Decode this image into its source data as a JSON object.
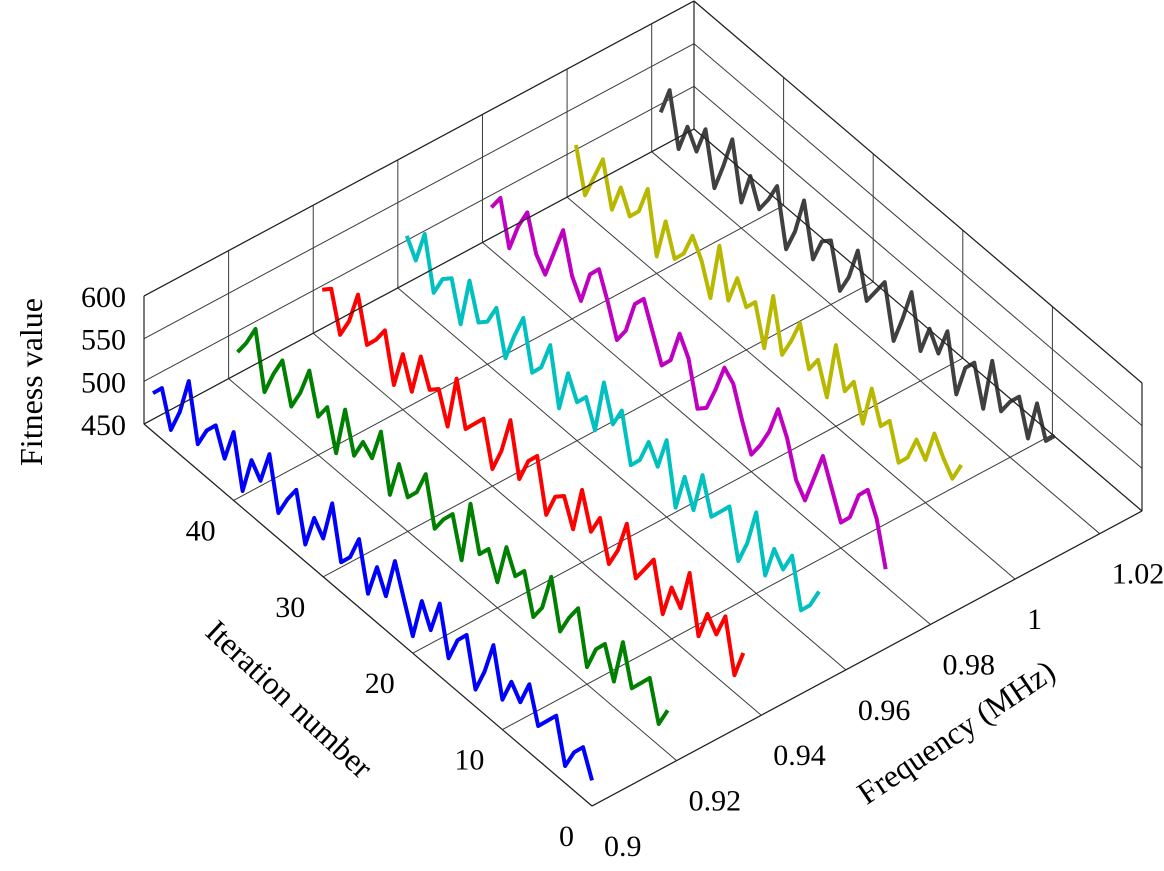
{
  "chart_data": {
    "type": "line",
    "subtype": "3d-waterfall",
    "title": "",
    "xlabel": "Iteration number",
    "ylabel": "Frequency (MHz)",
    "zlabel": "Fitness value",
    "xlim": [
      0,
      50
    ],
    "ylim": [
      0.9,
      1.03
    ],
    "zlim": [
      450,
      600
    ],
    "xticks": [
      0,
      10,
      20,
      30,
      40
    ],
    "xtick_labels": [
      "0",
      "10",
      "20",
      "30",
      "40"
    ],
    "yticks": [
      0.9,
      0.92,
      0.94,
      0.96,
      0.98,
      1.0,
      1.02
    ],
    "ytick_labels": [
      "0.9",
      "0.92",
      "0.94",
      "0.96",
      "0.98",
      "1",
      "1.02"
    ],
    "zticks": [
      450,
      500,
      550,
      600
    ],
    "ztick_labels": [
      "450",
      "500",
      "550",
      "600"
    ],
    "grid": true,
    "legend": "none",
    "series_colors": [
      "#0000ff",
      "#008000",
      "#ff0000",
      "#00c0c0",
      "#c000c0",
      "#b8b800",
      "#404040"
    ],
    "series": [
      {
        "x": [
          0,
          1,
          2,
          3,
          4,
          5,
          6,
          7,
          8,
          9,
          10,
          11,
          12,
          13,
          14,
          15,
          16,
          17,
          18,
          19,
          20,
          21,
          22,
          23,
          24,
          25,
          26,
          27,
          28,
          29,
          30,
          31,
          32,
          33,
          34,
          35,
          36,
          37,
          38,
          39,
          40,
          41,
          42,
          43,
          44,
          45,
          46,
          47,
          48,
          49
        ],
        "y": 0.9,
        "z": [
          480,
          510,
          495,
          470,
          520,
          505,
          490,
          530,
          500,
          515,
          485,
          540,
          500,
          470,
          525,
          510,
          480,
          535,
          495,
          520,
          470,
          505,
          540,
          490,
          515,
          475,
          530,
          500,
          485,
          545,
          495,
          510,
          470,
          525,
          505,
          480,
          540,
          500,
          515,
          470,
          530,
          490,
          520,
          505,
          480,
          545,
          500,
          470,
          510,
          495
        ]
      },
      {
        "x": [
          1,
          2,
          3,
          4,
          5,
          6,
          7,
          8,
          9,
          10,
          11,
          12,
          13,
          14,
          15,
          16,
          17,
          18,
          19,
          20,
          21,
          22,
          23,
          24,
          25,
          26,
          27,
          28,
          29,
          30,
          31,
          32,
          33,
          34,
          35,
          36,
          37,
          38,
          39,
          40,
          41,
          42,
          43,
          44,
          45,
          46,
          47,
          48,
          49
        ],
        "y": 0.92,
        "z": [
          500,
          475,
          520,
          505,
          490,
          535,
          480,
          515,
          500,
          470,
          530,
          510,
          485,
          540,
          495,
          475,
          520,
          505,
          530,
          480,
          510,
          495,
          545,
          470,
          515,
          500,
          480,
          535,
          505,
          490,
          520,
          475,
          540,
          500,
          510,
          485,
          530,
          470,
          515,
          495,
          540,
          505,
          480,
          525,
          500,
          470,
          535,
          510,
          490
        ]
      },
      {
        "x": [
          2,
          3,
          4,
          5,
          6,
          7,
          8,
          9,
          10,
          11,
          12,
          13,
          14,
          15,
          16,
          17,
          18,
          19,
          20,
          21,
          22,
          23,
          24,
          25,
          26,
          27,
          28,
          29,
          30,
          31,
          32,
          33,
          34,
          35,
          36,
          37,
          38,
          39,
          40,
          41,
          42,
          43,
          44,
          45,
          46,
          47,
          48,
          49
        ],
        "y": 0.94,
        "z": [
          505,
          470,
          530,
          500,
          515,
          480,
          545,
          495,
          510,
          470,
          525,
          505,
          485,
          540,
          500,
          475,
          520,
          495,
          535,
          480,
          510,
          500,
          470,
          530,
          515,
          485,
          545,
          500,
          470,
          520,
          505,
          490,
          540,
          475,
          510,
          500,
          530,
          480,
          515,
          470,
          525,
          505,
          490,
          540,
          500,
          475,
          520,
          510
        ]
      },
      {
        "x": [
          3,
          4,
          5,
          6,
          7,
          8,
          9,
          10,
          11,
          12,
          13,
          14,
          15,
          16,
          17,
          18,
          19,
          20,
          21,
          22,
          23,
          24,
          25,
          26,
          27,
          28,
          29,
          30,
          31,
          32,
          33,
          34,
          35,
          36,
          37,
          38,
          39,
          40,
          41,
          42,
          43,
          44,
          45,
          46,
          47,
          48,
          49
        ],
        "y": 0.96,
        "z": [
          515,
          490,
          475,
          530,
          505,
          520,
          480,
          545,
          500,
          470,
          525,
          510,
          495,
          535,
          485,
          515,
          470,
          540,
          500,
          520,
          490,
          475,
          530,
          505,
          545,
          480,
          510,
          495,
          520,
          470,
          535,
          500,
          485,
          540,
          510,
          475,
          525,
          500,
          490,
          530,
          470,
          515,
          505,
          480,
          540,
          500,
          520
        ]
      },
      {
        "x": [
          5,
          6,
          7,
          8,
          9,
          10,
          11,
          12,
          13,
          14,
          15,
          16,
          17,
          18,
          19,
          20,
          21,
          22,
          23,
          24,
          25,
          26,
          27,
          28,
          29,
          30,
          31,
          32,
          33,
          34,
          35,
          36,
          37,
          38,
          39,
          40,
          41,
          42,
          43,
          44,
          45,
          46,
          47,
          48,
          49
        ],
        "y": 0.98,
        "z": [
          470,
          520,
          545,
          530,
          495,
          480,
          510,
          540,
          505,
          470,
          485,
          525,
          550,
          515,
          490,
          470,
          500,
          535,
          545,
          510,
          480,
          470,
          520,
          540,
          500,
          485,
          515,
          545,
          530,
          490,
          470,
          505,
          535,
          520,
          480,
          500,
          545,
          510,
          475,
          490,
          530,
          505,
          470,
          520,
          500
        ]
      },
      {
        "x": [
          6,
          7,
          8,
          9,
          10,
          11,
          12,
          13,
          14,
          15,
          16,
          17,
          18,
          19,
          20,
          21,
          22,
          23,
          24,
          25,
          26,
          27,
          28,
          29,
          30,
          31,
          32,
          33,
          34,
          35,
          36,
          37,
          38,
          39,
          40,
          41,
          42,
          43,
          44,
          45,
          46,
          47,
          48,
          49
        ],
        "y": 1.0,
        "z": [
          530,
          505,
          520,
          540,
          500,
          515,
          485,
          470,
          510,
          495,
          530,
          480,
          520,
          500,
          545,
          475,
          510,
          490,
          535,
          505,
          480,
          540,
          470,
          515,
          500,
          525,
          490,
          545,
          475,
          510,
          530,
          500,
          485,
          520,
          470,
          540,
          505,
          490,
          515,
          480,
          530,
          500,
          470,
          520
        ]
      },
      {
        "x": [
          5,
          6,
          7,
          8,
          9,
          10,
          11,
          12,
          13,
          14,
          15,
          16,
          17,
          18,
          19,
          20,
          21,
          22,
          23,
          24,
          25,
          26,
          27,
          28,
          29,
          30,
          31,
          32,
          33,
          34,
          35,
          36,
          37,
          38,
          39,
          40,
          41,
          42,
          43,
          44,
          45,
          46,
          47,
          48,
          49
        ],
        "y": 1.02,
        "z": [
          520,
          505,
          540,
          490,
          530,
          515,
          495,
          545,
          480,
          525,
          510,
          470,
          535,
          500,
          520,
          485,
          545,
          505,
          470,
          530,
          510,
          490,
          540,
          500,
          475,
          525,
          515,
          485,
          545,
          500,
          470,
          535,
          510,
          490,
          520,
          480,
          545,
          505,
          470,
          530,
          495,
          515,
          480,
          540,
          505
        ]
      }
    ]
  }
}
